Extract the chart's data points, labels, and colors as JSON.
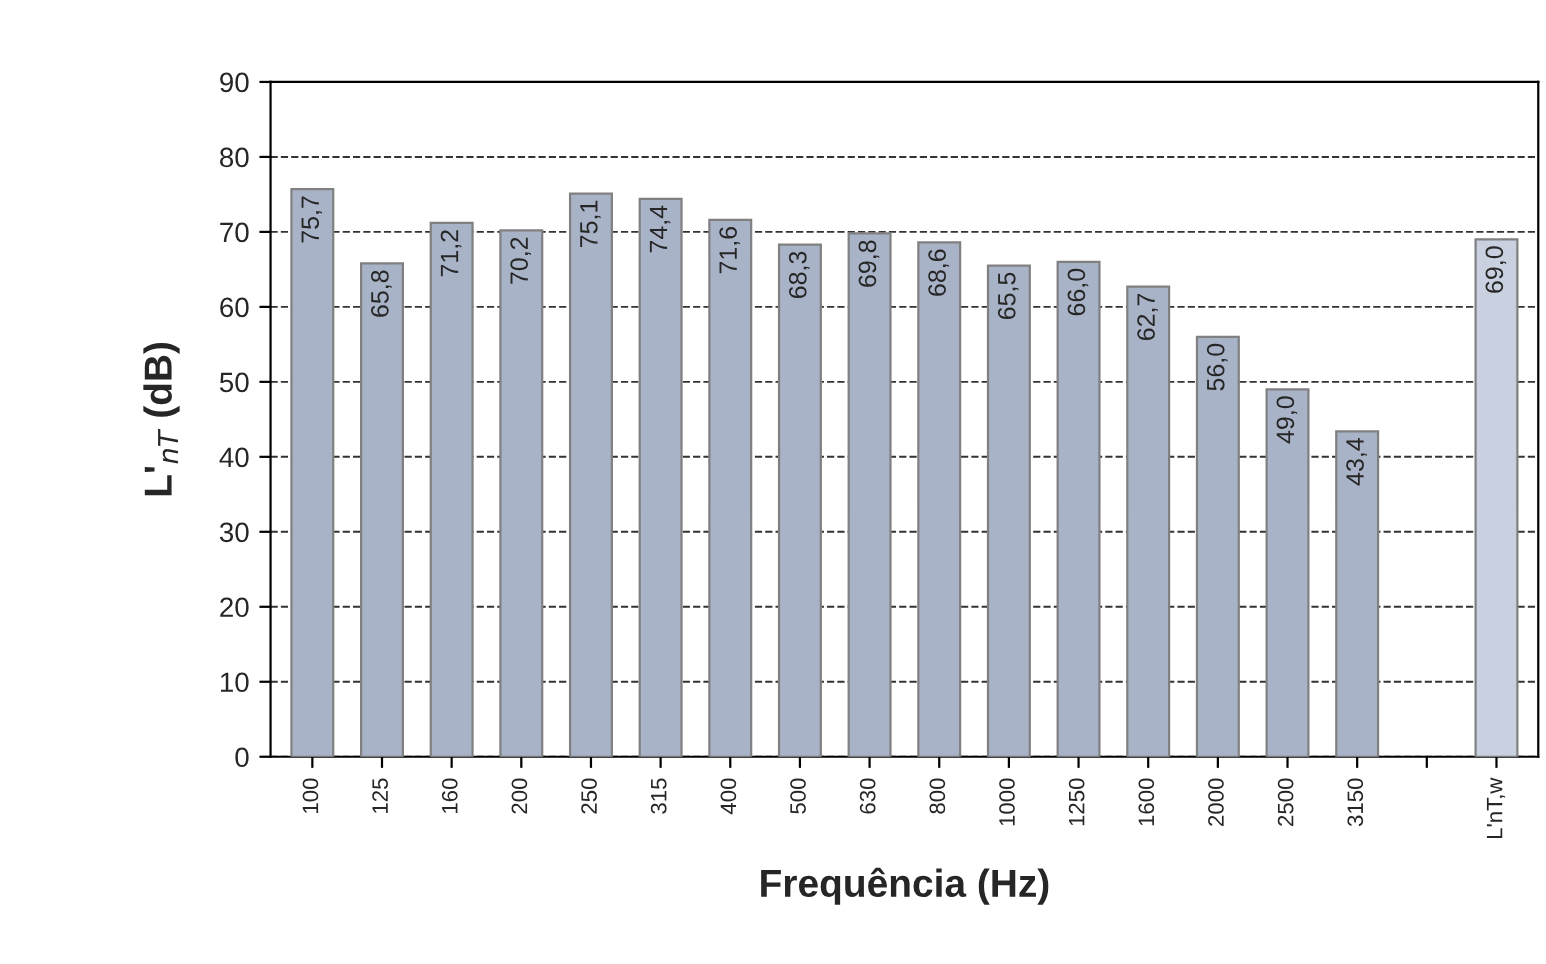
{
  "chart_data": {
    "type": "bar",
    "xlabel": "Frequência (Hz)",
    "ylabel": "L'$_{nT}$ (dB)",
    "categories": [
      "100",
      "125",
      "160",
      "200",
      "250",
      "315",
      "400",
      "500",
      "630",
      "800",
      "1000",
      "1250",
      "1600",
      "2000",
      "2500",
      "3150",
      null,
      "L'nT,w"
    ],
    "values": [
      75.7,
      65.8,
      71.2,
      70.2,
      75.1,
      74.4,
      71.6,
      68.3,
      69.8,
      68.6,
      65.5,
      66.0,
      62.7,
      56.0,
      49.0,
      43.4,
      null,
      69.0
    ],
    "value_labels": [
      "75,7",
      "65,8",
      "71,2",
      "70,2",
      "75,1",
      "74,4",
      "71,6",
      "68,3",
      "69,8",
      "68,6",
      "65,5",
      "66,0",
      "62,7",
      "56,0",
      "49,0",
      "43,4",
      null,
      "69,0"
    ],
    "colors": [
      "#a8b3c7",
      "#a8b3c7",
      "#a8b3c7",
      "#a8b3c7",
      "#a8b3c7",
      "#a8b3c7",
      "#a8b3c7",
      "#a8b3c7",
      "#a8b3c7",
      "#a8b3c7",
      "#a8b3c7",
      "#a8b3c7",
      "#a8b3c7",
      "#a8b3c7",
      "#a8b3c7",
      "#a8b3c7",
      "#a8b3c7",
      "#c9d1e0"
    ],
    "ylim": [
      0,
      90
    ],
    "yticks": [
      0,
      10,
      20,
      30,
      40,
      50,
      60,
      70,
      80,
      90
    ],
    "grid": "y",
    "line_style": "dashed",
    "legend": false
  }
}
